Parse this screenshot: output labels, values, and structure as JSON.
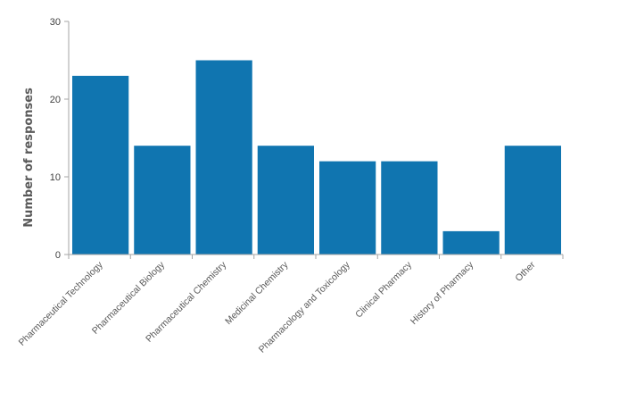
{
  "chart_data": {
    "type": "bar",
    "title": "",
    "xlabel": "",
    "ylabel": "Number of responses",
    "ylim": [
      0,
      30
    ],
    "yticks": [
      0,
      10,
      20,
      30
    ],
    "grid": false,
    "categories": [
      "Pharmaceutical Technology",
      "Pharmaceutical Biology",
      "Pharmaceutical Chemistry",
      "Medicinal Chemistry",
      "Pharmacology and Toxicology",
      "Clinical Pharmacy",
      "History of Pharmacy",
      "Other"
    ],
    "values": [
      23,
      14,
      25,
      14,
      12,
      12,
      3,
      14
    ],
    "bar_color": "#1075B0",
    "axis_color": "#A6A6A6"
  }
}
